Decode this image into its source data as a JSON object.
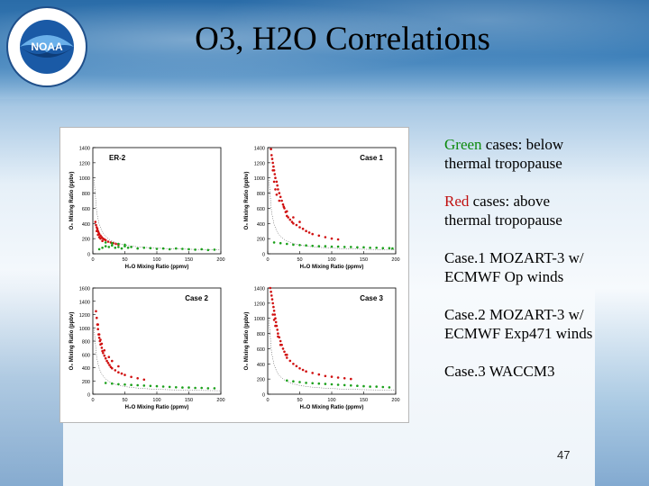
{
  "slide": {
    "title": "O3, H2O Correlations",
    "page_number": "47",
    "logo_text": "NATIONAL OCEANIC AND ATMOSPHERIC ADMINISTRATION · U.S. DEPARTMENT OF COMMERCE",
    "logo_wordmark": "NOAA"
  },
  "notes": [
    {
      "highlight": "Green",
      "highlight_color": "#0d8a0d",
      "line1_rest": " cases: below",
      "line2": "thermal tropopause"
    },
    {
      "highlight": "Red",
      "highlight_color": "#c01010",
      "line1_rest": " cases: above",
      "line2": "thermal tropopause"
    },
    {
      "highlight": "",
      "line1_rest": "Case.1 MOZART-3 w/",
      "line2": "ECMWF Op winds"
    },
    {
      "highlight": "",
      "line1_rest": "Case.2 MOZART-3 w/",
      "line2": "ECMWF Exp471 winds"
    },
    {
      "highlight": "",
      "line1_rest": "Case.3 WACCM3",
      "line2": ""
    }
  ],
  "chart_data": [
    {
      "type": "scatter",
      "panel_label": "ER-2",
      "xlabel": "H₂O Mixing Ratio (ppmv)",
      "ylabel": "O₃ Mixing Ratio (ppbv)",
      "xlim": [
        0,
        200
      ],
      "ylim": [
        0,
        1400
      ],
      "xticks": [
        "0",
        "50",
        "100",
        "150",
        "200"
      ],
      "yticks": [
        "0",
        "200",
        "400",
        "600",
        "800",
        "1000",
        "1200",
        "1400"
      ],
      "series": [
        {
          "color": "#d01010",
          "points": [
            [
              4,
              420
            ],
            [
              5,
              380
            ],
            [
              6,
              350
            ],
            [
              7,
              330
            ],
            [
              8,
              300
            ],
            [
              9,
              280
            ],
            [
              10,
              260
            ],
            [
              12,
              240
            ],
            [
              14,
              220
            ],
            [
              16,
              200
            ],
            [
              18,
              190
            ],
            [
              20,
              180
            ],
            [
              24,
              160
            ],
            [
              28,
              150
            ],
            [
              32,
              140
            ],
            [
              36,
              130
            ],
            [
              40,
              120
            ],
            [
              6,
              300
            ],
            [
              8,
              250
            ],
            [
              10,
              220
            ],
            [
              12,
              200
            ],
            [
              15,
              170
            ]
          ]
        },
        {
          "color": "#1aa01a",
          "points": [
            [
              10,
              60
            ],
            [
              15,
              80
            ],
            [
              20,
              100
            ],
            [
              25,
              90
            ],
            [
              30,
              110
            ],
            [
              35,
              80
            ],
            [
              40,
              90
            ],
            [
              45,
              70
            ],
            [
              50,
              100
            ],
            [
              55,
              80
            ],
            [
              60,
              90
            ],
            [
              70,
              70
            ],
            [
              80,
              80
            ],
            [
              90,
              75
            ],
            [
              100,
              65
            ],
            [
              110,
              70
            ],
            [
              120,
              60
            ],
            [
              130,
              70
            ],
            [
              140,
              65
            ],
            [
              150,
              60
            ],
            [
              160,
              55
            ],
            [
              170,
              60
            ],
            [
              180,
              50
            ],
            [
              190,
              55
            ],
            [
              20,
              150
            ],
            [
              30,
              140
            ],
            [
              40,
              130
            ],
            [
              50,
              120
            ]
          ]
        }
      ]
    },
    {
      "type": "scatter",
      "panel_label": "Case 1",
      "xlabel": "H₂O Mixing Ratio (ppmv)",
      "ylabel": "O₃ Mixing Ratio (ppbv)",
      "xlim": [
        0,
        200
      ],
      "ylim": [
        0,
        1400
      ],
      "xticks": [
        "0",
        "50",
        "100",
        "150",
        "200"
      ],
      "yticks": [
        "0",
        "200",
        "400",
        "600",
        "800",
        "1000",
        "1200",
        "1400"
      ],
      "series": [
        {
          "color": "#d01010",
          "points": [
            [
              5,
              1380
            ],
            [
              6,
              1300
            ],
            [
              7,
              1250
            ],
            [
              8,
              1200
            ],
            [
              9,
              1150
            ],
            [
              10,
              1100
            ],
            [
              11,
              1050
            ],
            [
              12,
              1000
            ],
            [
              14,
              950
            ],
            [
              15,
              900
            ],
            [
              16,
              850
            ],
            [
              18,
              800
            ],
            [
              20,
              750
            ],
            [
              22,
              700
            ],
            [
              24,
              650
            ],
            [
              26,
              600
            ],
            [
              28,
              550
            ],
            [
              30,
              500
            ],
            [
              32,
              480
            ],
            [
              35,
              450
            ],
            [
              38,
              420
            ],
            [
              40,
              400
            ],
            [
              45,
              380
            ],
            [
              50,
              350
            ],
            [
              55,
              330
            ],
            [
              60,
              300
            ],
            [
              65,
              280
            ],
            [
              70,
              260
            ],
            [
              80,
              240
            ],
            [
              90,
              220
            ],
            [
              100,
              200
            ],
            [
              110,
              190
            ],
            [
              8,
              1100
            ],
            [
              10,
              950
            ],
            [
              12,
              850
            ],
            [
              14,
              780
            ],
            [
              18,
              700
            ],
            [
              25,
              620
            ],
            [
              30,
              560
            ],
            [
              40,
              480
            ],
            [
              50,
              420
            ]
          ]
        },
        {
          "color": "#1aa01a",
          "points": [
            [
              10,
              150
            ],
            [
              20,
              140
            ],
            [
              30,
              130
            ],
            [
              40,
              120
            ],
            [
              50,
              115
            ],
            [
              60,
              110
            ],
            [
              70,
              105
            ],
            [
              80,
              100
            ],
            [
              90,
              100
            ],
            [
              100,
              95
            ],
            [
              110,
              95
            ],
            [
              120,
              90
            ],
            [
              130,
              90
            ],
            [
              140,
              85
            ],
            [
              150,
              85
            ],
            [
              160,
              80
            ],
            [
              170,
              80
            ],
            [
              180,
              75
            ],
            [
              190,
              75
            ],
            [
              195,
              70
            ]
          ]
        }
      ]
    },
    {
      "type": "scatter",
      "panel_label": "Case 2",
      "xlabel": "H₂O Mixing Ratio (ppmv)",
      "ylabel": "O₃ Mixing Ratio (ppbv)",
      "xlim": [
        0,
        200
      ],
      "ylim": [
        0,
        1600
      ],
      "xticks": [
        "0",
        "50",
        "100",
        "150",
        "200"
      ],
      "yticks": [
        "0",
        "200",
        "400",
        "600",
        "800",
        "1000",
        "1200",
        "1400",
        "1600"
      ],
      "series": [
        {
          "color": "#d01010",
          "points": [
            [
              5,
              1250
            ],
            [
              6,
              1150
            ],
            [
              7,
              1050
            ],
            [
              8,
              980
            ],
            [
              9,
              900
            ],
            [
              10,
              850
            ],
            [
              11,
              800
            ],
            [
              12,
              750
            ],
            [
              14,
              700
            ],
            [
              15,
              650
            ],
            [
              16,
              620
            ],
            [
              18,
              580
            ],
            [
              20,
              540
            ],
            [
              22,
              500
            ],
            [
              24,
              470
            ],
            [
              26,
              440
            ],
            [
              28,
              410
            ],
            [
              30,
              390
            ],
            [
              35,
              360
            ],
            [
              40,
              330
            ],
            [
              45,
              310
            ],
            [
              50,
              290
            ],
            [
              60,
              260
            ],
            [
              70,
              240
            ],
            [
              80,
              220
            ],
            [
              8,
              1050
            ],
            [
              10,
              900
            ],
            [
              12,
              820
            ],
            [
              14,
              760
            ],
            [
              18,
              660
            ],
            [
              25,
              560
            ],
            [
              30,
              500
            ],
            [
              40,
              420
            ]
          ]
        },
        {
          "color": "#1aa01a",
          "points": [
            [
              20,
              170
            ],
            [
              30,
              160
            ],
            [
              40,
              150
            ],
            [
              50,
              145
            ],
            [
              60,
              140
            ],
            [
              70,
              135
            ],
            [
              80,
              130
            ],
            [
              90,
              125
            ],
            [
              100,
              120
            ],
            [
              110,
              115
            ],
            [
              120,
              110
            ],
            [
              130,
              105
            ],
            [
              140,
              100
            ],
            [
              150,
              100
            ],
            [
              160,
              95
            ],
            [
              170,
              95
            ],
            [
              180,
              90
            ],
            [
              190,
              90
            ]
          ]
        }
      ]
    },
    {
      "type": "scatter",
      "panel_label": "Case 3",
      "xlabel": "H₂O Mixing Ratio (ppmv)",
      "ylabel": "O₃ Mixing Ratio (ppbv)",
      "xlim": [
        0,
        200
      ],
      "ylim": [
        0,
        1400
      ],
      "xticks": [
        "0",
        "50",
        "100",
        "150",
        "200"
      ],
      "yticks": [
        "0",
        "200",
        "400",
        "600",
        "800",
        "1000",
        "1200",
        "1400"
      ],
      "series": [
        {
          "color": "#d01010",
          "points": [
            [
              4,
              1400
            ],
            [
              5,
              1350
            ],
            [
              6,
              1300
            ],
            [
              7,
              1250
            ],
            [
              8,
              1200
            ],
            [
              9,
              1150
            ],
            [
              10,
              1100
            ],
            [
              11,
              1050
            ],
            [
              12,
              1000
            ],
            [
              13,
              950
            ],
            [
              14,
              900
            ],
            [
              15,
              850
            ],
            [
              16,
              800
            ],
            [
              18,
              750
            ],
            [
              20,
              700
            ],
            [
              22,
              650
            ],
            [
              24,
              600
            ],
            [
              26,
              560
            ],
            [
              28,
              520
            ],
            [
              30,
              480
            ],
            [
              35,
              440
            ],
            [
              40,
              400
            ],
            [
              45,
              370
            ],
            [
              50,
              340
            ],
            [
              55,
              320
            ],
            [
              60,
              300
            ],
            [
              70,
              280
            ],
            [
              80,
              260
            ],
            [
              90,
              240
            ],
            [
              100,
              230
            ],
            [
              110,
              220
            ],
            [
              120,
              210
            ],
            [
              130,
              200
            ],
            [
              8,
              1050
            ],
            [
              10,
              980
            ],
            [
              12,
              900
            ],
            [
              16,
              760
            ],
            [
              20,
              650
            ],
            [
              30,
              520
            ]
          ]
        },
        {
          "color": "#1aa01a",
          "points": [
            [
              30,
              180
            ],
            [
              40,
              170
            ],
            [
              50,
              160
            ],
            [
              60,
              150
            ],
            [
              70,
              145
            ],
            [
              80,
              140
            ],
            [
              90,
              135
            ],
            [
              100,
              130
            ],
            [
              110,
              125
            ],
            [
              120,
              120
            ],
            [
              130,
              115
            ],
            [
              140,
              110
            ],
            [
              150,
              105
            ],
            [
              160,
              100
            ],
            [
              170,
              100
            ],
            [
              180,
              95
            ],
            [
              190,
              90
            ]
          ]
        }
      ]
    }
  ]
}
